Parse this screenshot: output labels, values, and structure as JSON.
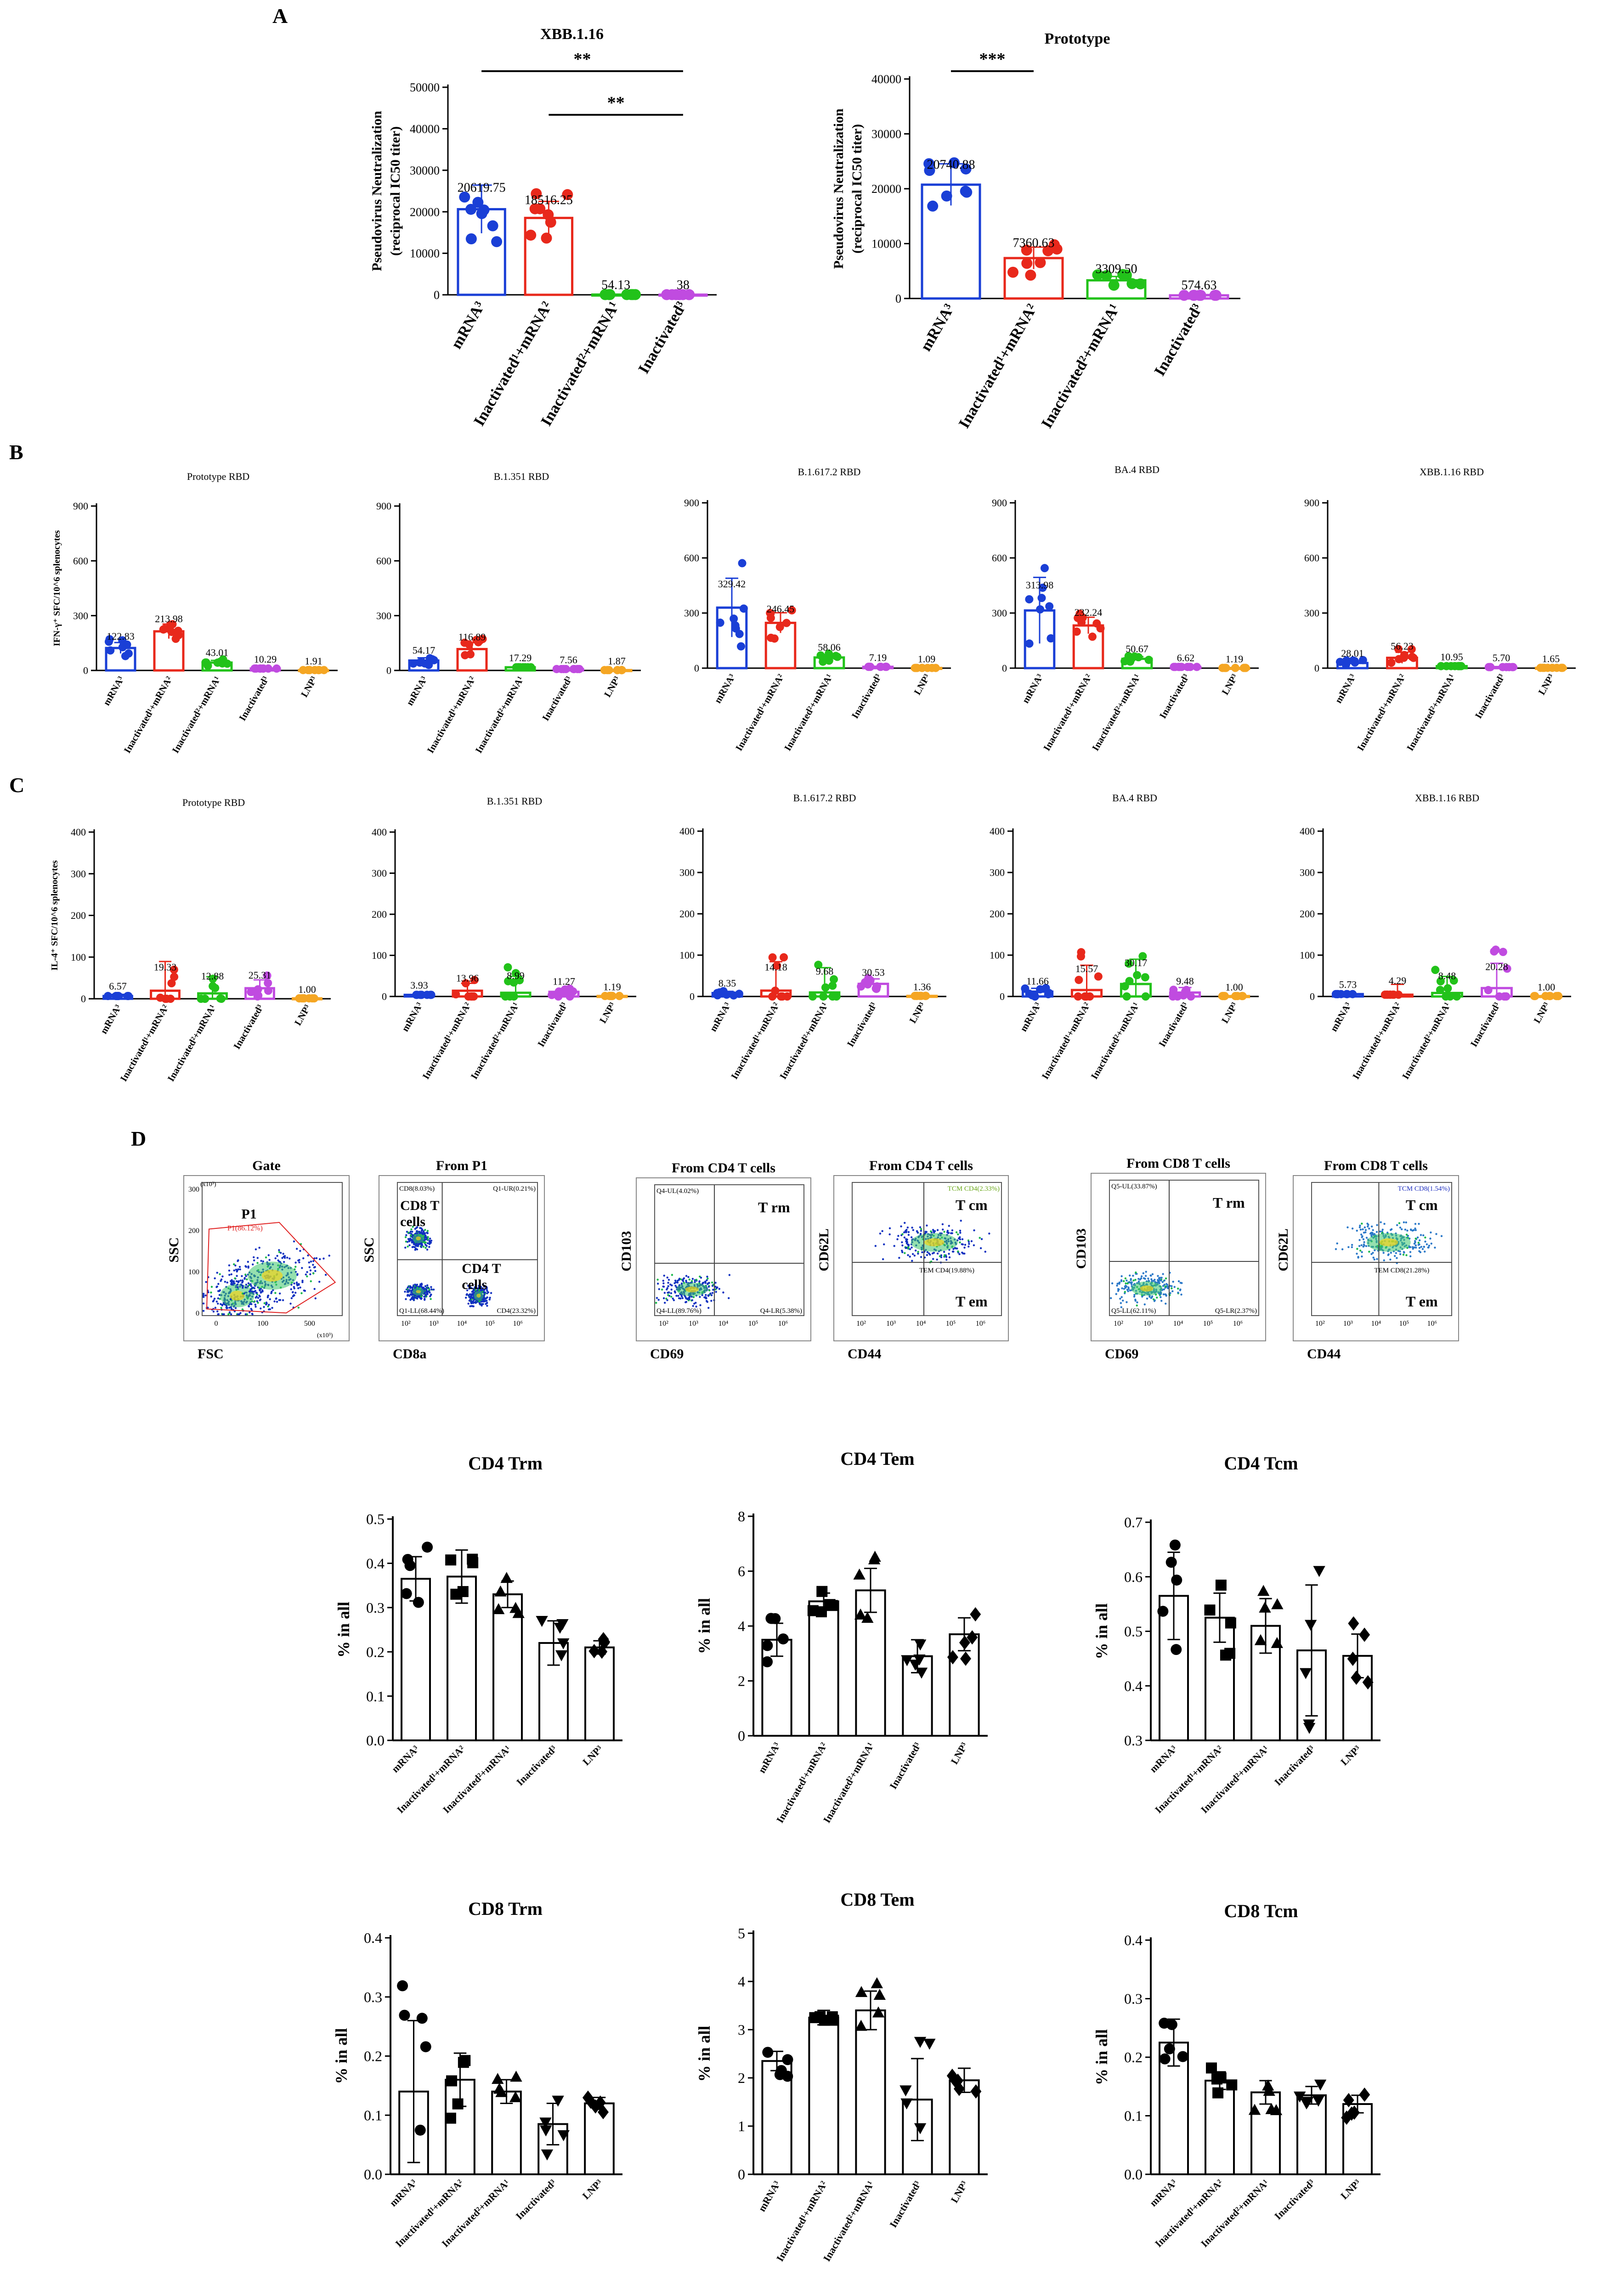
{
  "panels": {
    "A": "A",
    "B": "B",
    "C": "C",
    "D": "D"
  },
  "colors": {
    "mRNA": "#1a3fd6",
    "inact1_mrna2": "#e8281b",
    "inact2_mrna1": "#22c21a",
    "inactivated": "#c04be0",
    "lnp": "#f5a623",
    "black": "#000000"
  },
  "groups_a": [
    "mRNA³",
    "Inactivated¹+mRNA²",
    "Inactivated²+mRNA¹",
    "Inactivated³"
  ],
  "groups5": [
    "mRNA³",
    "Inactivated¹+mRNA²",
    "Inactivated²+mRNA¹",
    "Inactivated³",
    "LNP³"
  ],
  "chart_data": [
    {
      "id": "A1",
      "type": "bar",
      "title": "XBB.1.16",
      "ylabel_line1": "Pseudovirus Neutralization",
      "ylabel_line2": "(reciprocal IC50 titer)",
      "ylim": [
        0,
        50000
      ],
      "ticks": [
        0,
        10000,
        20000,
        30000,
        40000,
        50000
      ],
      "tick_labels": [
        "0",
        "10000",
        "20000",
        "30000",
        "40000",
        "50000"
      ],
      "categories": [
        "mRNA³",
        "Inactivated¹+mRNA²",
        "Inactivated²+mRNA¹",
        "Inactivated³"
      ],
      "values": [
        20619.75,
        18516.25,
        54.13,
        38
      ],
      "value_labels": [
        "20619.75",
        "18516.25",
        "54.13",
        "38"
      ],
      "sem": [
        5800,
        4000,
        0,
        0
      ],
      "significance": [
        {
          "from": 0,
          "to": 3,
          "label": "**"
        },
        {
          "from": 1,
          "to": 3,
          "label": "**"
        }
      ]
    },
    {
      "id": "A2",
      "type": "bar",
      "title": "Prototype",
      "ylabel_line1": "Pseudovirus Neutralization",
      "ylabel_line2": "(reciprocal IC50 titer)",
      "ylim": [
        0,
        40000
      ],
      "ticks": [
        0,
        10000,
        20000,
        30000,
        40000
      ],
      "tick_labels": [
        "0",
        "10000",
        "20000",
        "30000",
        "40000"
      ],
      "categories": [
        "mRNA³",
        "Inactivated¹+mRNA²",
        "Inactivated²+mRNA¹",
        "Inactivated³"
      ],
      "values": [
        20740.88,
        7360.63,
        3309.5,
        574.63
      ],
      "value_labels": [
        "20740.88",
        "7360.63",
        "3309.50",
        "574.63"
      ],
      "sem": [
        3800,
        2000,
        700,
        150
      ],
      "significance": [
        {
          "from": 0,
          "to": 1,
          "label": "***"
        }
      ]
    },
    {
      "id": "B1",
      "type": "bar",
      "title": "Prototype RBD",
      "ylabel": "IFN-γ⁺ SFC/10^6 splenocytes",
      "ylim": [
        0,
        900
      ],
      "ticks": [
        0,
        300,
        600,
        900
      ],
      "categories": [
        "mRNA³",
        "Inactivated¹+mRNA²",
        "Inactivated²+mRNA¹",
        "Inactivated³",
        "LNP³"
      ],
      "values": [
        122.83,
        213.98,
        43.01,
        10.29,
        1.91
      ],
      "value_labels": [
        "122.83",
        "213.98",
        "43.01",
        "10.29",
        "1.91"
      ],
      "sem": [
        30,
        40,
        12,
        5,
        1
      ]
    },
    {
      "id": "B2",
      "type": "bar",
      "title": "B.1.351 RBD",
      "ylim": [
        0,
        900
      ],
      "ticks": [
        0,
        300,
        600,
        900
      ],
      "categories": [
        "mRNA³",
        "Inactivated¹+mRNA²",
        "Inactivated²+mRNA¹",
        "Inactivated³",
        "LNP³"
      ],
      "values": [
        54.17,
        116.89,
        17.29,
        7.56,
        1.87
      ],
      "value_labels": [
        "54.17",
        "116.89",
        "17.29",
        "7.56",
        "1.87"
      ],
      "sem": [
        15,
        35,
        6,
        3,
        1
      ]
    },
    {
      "id": "B3",
      "type": "bar",
      "title": "B.1.617.2  RBD",
      "ylim": [
        0,
        900
      ],
      "ticks": [
        0,
        300,
        600,
        900
      ],
      "categories": [
        "mRNA³",
        "Inactivated¹+mRNA²",
        "Inactivated²+mRNA¹",
        "Inactivated³",
        "LNP³"
      ],
      "values": [
        329.42,
        246.45,
        58.06,
        7.19,
        1.09
      ],
      "value_labels": [
        "329.42",
        "246.45",
        "58.06",
        "7.19",
        "1.09"
      ],
      "sem": [
        160,
        55,
        15,
        3,
        1
      ]
    },
    {
      "id": "B4",
      "type": "bar",
      "title": "BA.4  RBD",
      "ylim": [
        0,
        900
      ],
      "ticks": [
        0,
        300,
        600,
        900
      ],
      "categories": [
        "mRNA³",
        "Inactivated¹+mRNA²",
        "Inactivated²+mRNA¹",
        "Inactivated³",
        "LNP³"
      ],
      "values": [
        313.98,
        232.24,
        50.67,
        6.62,
        1.19
      ],
      "value_labels": [
        "313.98",
        "232.24",
        "50.67",
        "6.62",
        "1.19"
      ],
      "sem": [
        180,
        45,
        12,
        3,
        1
      ]
    },
    {
      "id": "B5",
      "type": "bar",
      "title": "XBB.1.16 RBD",
      "ylim": [
        0,
        900
      ],
      "ticks": [
        0,
        300,
        600,
        900
      ],
      "categories": [
        "mRNA³",
        "Inactivated¹+mRNA²",
        "Inactivated²+mRNA¹",
        "Inactivated³",
        "LNP³"
      ],
      "values": [
        28.01,
        56.23,
        10.95,
        5.7,
        1.65
      ],
      "value_labels": [
        "28.01",
        "56.23",
        "10.95",
        "5.70",
        "1.65"
      ],
      "sem": [
        10,
        30,
        4,
        3,
        1
      ]
    },
    {
      "id": "C1",
      "type": "bar",
      "title": "Prototype RBD",
      "ylabel": "IL-4⁺ SFC/10^6 splenocytes",
      "ylim": [
        0,
        400
      ],
      "ticks": [
        0,
        100,
        200,
        300,
        400
      ],
      "categories": [
        "mRNA³",
        "Inactivated¹+mRNA²",
        "Inactivated²+mRNA¹",
        "Inactivated³",
        "LNP³"
      ],
      "values": [
        6.57,
        19.33,
        12.88,
        25.31,
        1.0
      ],
      "value_labels": [
        "6.57",
        "19.33",
        "12.88",
        "25.31",
        "1.00"
      ],
      "sem": [
        4,
        70,
        40,
        20,
        0
      ]
    },
    {
      "id": "C2",
      "type": "bar",
      "title": "B.1.351 RBD",
      "ylim": [
        0,
        400
      ],
      "ticks": [
        0,
        100,
        200,
        300,
        400
      ],
      "categories": [
        "mRNA³",
        "Inactivated¹+mRNA²",
        "Inactivated²+mRNA¹",
        "Inactivated³",
        "LNP³"
      ],
      "values": [
        3.93,
        13.96,
        8.99,
        11.27,
        1.19
      ],
      "value_labels": [
        "3.93",
        "13.96",
        "8.99",
        "11.27",
        "1.19"
      ],
      "sem": [
        3,
        18,
        40,
        8,
        1
      ]
    },
    {
      "id": "C3",
      "type": "bar",
      "title": "B.1.617.2  RBD",
      "ylim": [
        0,
        400
      ],
      "ticks": [
        0,
        100,
        200,
        300,
        400
      ],
      "categories": [
        "mRNA³",
        "Inactivated¹+mRNA²",
        "Inactivated²+mRNA¹",
        "Inactivated³",
        "LNP³"
      ],
      "values": [
        8.35,
        14.18,
        9.68,
        30.53,
        1.36
      ],
      "value_labels": [
        "8.35",
        "14.18",
        "9.68",
        "30.53",
        "1.36"
      ],
      "sem": [
        4,
        70,
        60,
        12,
        1
      ]
    },
    {
      "id": "C4",
      "type": "bar",
      "title": "BA.4  RBD",
      "ylim": [
        0,
        400
      ],
      "ticks": [
        0,
        100,
        200,
        300,
        400
      ],
      "categories": [
        "mRNA³",
        "Inactivated¹+mRNA²",
        "Inactivated²+mRNA¹",
        "Inactivated³",
        "LNP³"
      ],
      "values": [
        11.66,
        15.57,
        30.17,
        9.48,
        1.0
      ],
      "value_labels": [
        "11.66",
        "15.57",
        "30.17",
        "9.48",
        "1.00"
      ],
      "sem": [
        8,
        60,
        60,
        12,
        0
      ]
    },
    {
      "id": "C5",
      "type": "bar",
      "title": "XBB.1.16  RBD",
      "ylim": [
        0,
        400
      ],
      "ticks": [
        0,
        100,
        200,
        300,
        400
      ],
      "categories": [
        "mRNA³",
        "Inactivated¹+mRNA²",
        "Inactivated²+mRNA¹",
        "Inactivated³",
        "LNP³"
      ],
      "values": [
        5.73,
        4.29,
        8.48,
        20.28,
        1.0
      ],
      "value_labels": [
        "5.73",
        "4.29",
        "8.48",
        "20.28",
        "1.00"
      ],
      "sem": [
        3,
        25,
        40,
        60,
        0
      ]
    },
    {
      "id": "D1",
      "type": "bar",
      "title": "CD4 Trm",
      "ylabel": "% in all",
      "ylim": [
        0,
        0.5
      ],
      "ticks": [
        0,
        0.1,
        0.2,
        0.3,
        0.4,
        0.5
      ],
      "tick_labels": [
        "0.0",
        "0.1",
        "0.2",
        "0.3",
        "0.4",
        "0.5"
      ],
      "categories": [
        "mRNA³",
        "Inactivated¹+mRNA²",
        "Inactivated²+mRNA¹",
        "Inactivated³",
        "LNP³"
      ],
      "values": [
        0.365,
        0.37,
        0.33,
        0.22,
        0.21
      ],
      "sd": [
        0.05,
        0.06,
        0.03,
        0.05,
        0.015
      ]
    },
    {
      "id": "D2",
      "type": "bar",
      "title": "CD4 Tem",
      "ylabel": "% in all",
      "ylim": [
        0,
        8
      ],
      "ticks": [
        0,
        2,
        4,
        6,
        8
      ],
      "tick_labels": [
        "0",
        "2",
        "4",
        "6",
        "8"
      ],
      "categories": [
        "mRNA³",
        "Inactivated¹+mRNA²",
        "Inactivated²+mRNA¹",
        "Inactivated³",
        "LNP³"
      ],
      "values": [
        3.5,
        4.9,
        5.3,
        2.9,
        3.7
      ],
      "sd": [
        0.6,
        0.3,
        0.8,
        0.6,
        0.6
      ]
    },
    {
      "id": "D3",
      "type": "bar",
      "title": "CD4 Tcm",
      "ylabel": "% in all",
      "ylim": [
        0.3,
        0.7
      ],
      "ticks": [
        0.3,
        0.4,
        0.5,
        0.6,
        0.7
      ],
      "tick_labels": [
        "0.3",
        "0.4",
        "0.5",
        "0.6",
        "0.7"
      ],
      "categories": [
        "mRNA³",
        "Inactivated¹+mRNA²",
        "Inactivated²+mRNA¹",
        "Inactivated³",
        "LNP³"
      ],
      "values": [
        0.565,
        0.525,
        0.51,
        0.465,
        0.455
      ],
      "sd": [
        0.08,
        0.045,
        0.05,
        0.12,
        0.04
      ]
    },
    {
      "id": "D4",
      "type": "bar",
      "title": "CD8 Trm",
      "ylabel": "% in all",
      "ylim": [
        0,
        0.4
      ],
      "ticks": [
        0,
        0.1,
        0.2,
        0.3,
        0.4
      ],
      "tick_labels": [
        "0.0",
        "0.1",
        "0.2",
        "0.3",
        "0.4"
      ],
      "categories": [
        "mRNA³",
        "Inactivated¹+mRNA²",
        "Inactivated²+mRNA¹",
        "Inactivated³",
        "LNP³"
      ],
      "values": [
        0.14,
        0.16,
        0.14,
        0.085,
        0.12
      ],
      "sd": [
        0.12,
        0.045,
        0.02,
        0.035,
        0.01
      ]
    },
    {
      "id": "D5",
      "type": "bar",
      "title": "CD8 Tem",
      "ylabel": "% in all",
      "ylim": [
        0,
        5
      ],
      "ticks": [
        0,
        1,
        2,
        3,
        4,
        5
      ],
      "tick_labels": [
        "0",
        "1",
        "2",
        "3",
        "4",
        "5"
      ],
      "categories": [
        "mRNA³",
        "Inactivated¹+mRNA²",
        "Inactivated²+mRNA¹",
        "Inactivated³",
        "LNP³"
      ],
      "values": [
        2.35,
        3.25,
        3.4,
        1.55,
        1.95
      ],
      "sd": [
        0.2,
        0.15,
        0.4,
        0.85,
        0.25
      ]
    },
    {
      "id": "D6",
      "type": "bar",
      "title": "CD8 Tcm",
      "ylabel": "% in all",
      "ylim": [
        0,
        0.4
      ],
      "ticks": [
        0,
        0.1,
        0.2,
        0.3,
        0.4
      ],
      "tick_labels": [
        "0.0",
        "0.1",
        "0.2",
        "0.3",
        "0.4"
      ],
      "categories": [
        "mRNA³",
        "Inactivated¹+mRNA²",
        "Inactivated²+mRNA¹",
        "Inactivated³",
        "LNP³"
      ],
      "values": [
        0.225,
        0.16,
        0.14,
        0.135,
        0.12
      ],
      "sd": [
        0.04,
        0.015,
        0.02,
        0.015,
        0.015
      ]
    }
  ],
  "flow": {
    "plots": [
      {
        "title": "Gate",
        "xlabel": "FSC",
        "ylabel": "SSC",
        "axis_note_y": "(x10³)",
        "axis_note_x": "(x10³)",
        "y_ticks": [
          "300",
          "200",
          "100",
          "0"
        ],
        "x_ticks": [
          "0",
          "100",
          "500"
        ],
        "gate_name": "P1",
        "gate_pct": "P1(86.12%)"
      },
      {
        "title": "From P1",
        "xlabel": "CD8a",
        "ylabel": "SSC",
        "q_ul": "CD8(8.03%)",
        "q_ur": "Q1-UR(0.21%)",
        "q_ll": "Q1-LL(68.44%)",
        "q_lr": "CD4(23.32%)",
        "label_a": "CD8 T",
        "label_a2": "cells",
        "label_b": "CD4 T",
        "label_b2": "cells",
        "x_ticks": [
          "10²",
          "10³",
          "10⁴",
          "10⁵",
          "10⁶"
        ]
      },
      {
        "title": "From CD4 T cells",
        "xlabel": "CD69",
        "ylabel": "CD103",
        "q_ul": "Q4-UL(4.02%)",
        "q_ll": "Q4-LL(89.76%)",
        "q_lr": "Q4-LR(5.38%)",
        "region": "T rm",
        "x_ticks": [
          "10²",
          "10³",
          "10⁴",
          "10⁵",
          "10⁶"
        ]
      },
      {
        "title": "From CD4 T cells",
        "xlabel": "CD44",
        "ylabel": "CD62L",
        "q_ur": "TCM CD4(2.33%)",
        "q_mid": "TEM CD4(19.88%)",
        "region": "T cm",
        "region2": "T em",
        "x_ticks": [
          "10²",
          "10³",
          "10⁴",
          "10⁵",
          "10⁶"
        ]
      },
      {
        "title": "From CD8 T cells",
        "xlabel": "CD69",
        "ylabel": "CD103",
        "q_ul": "Q5-UL(33.87%)",
        "q_ll": "Q5-LL(62.11%)",
        "q_lr": "Q5-LR(2.37%)",
        "region": "T rm",
        "x_ticks": [
          "10²",
          "10³",
          "10⁴",
          "10⁵",
          "10⁶"
        ]
      },
      {
        "title": "From CD8 T cells",
        "xlabel": "CD44",
        "ylabel": "CD62L",
        "q_ur": "TCM CD8(1.54%)",
        "q_mid": "TEM CD8(21.28%)",
        "region": "T cm",
        "region2": "T em",
        "x_ticks": [
          "10²",
          "10³",
          "10⁴",
          "10⁵",
          "10⁶"
        ]
      }
    ]
  }
}
